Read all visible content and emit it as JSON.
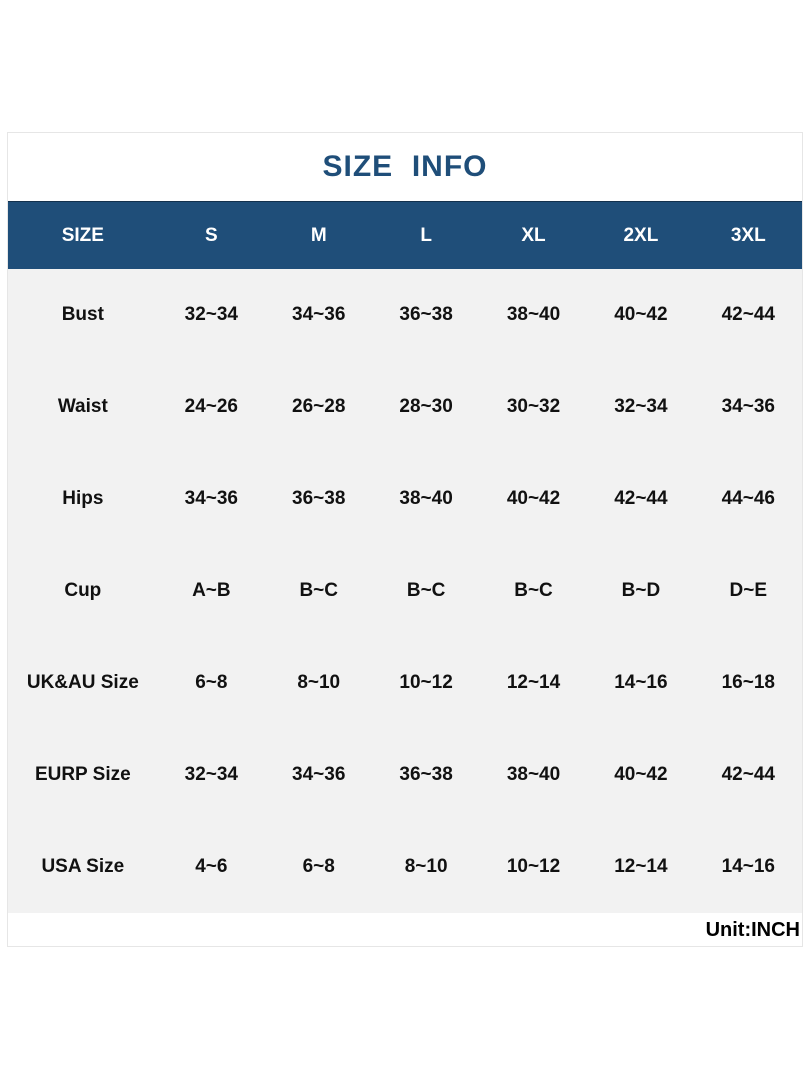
{
  "title": "SIZE  INFO",
  "header": [
    "SIZE",
    "S",
    "M",
    "L",
    "XL",
    "2XL",
    "3XL"
  ],
  "rows": [
    {
      "label": "Bust",
      "values": [
        "32~34",
        "34~36",
        "36~38",
        "38~40",
        "40~42",
        "42~44"
      ]
    },
    {
      "label": "Waist",
      "values": [
        "24~26",
        "26~28",
        "28~30",
        "30~32",
        "32~34",
        "34~36"
      ]
    },
    {
      "label": "Hips",
      "values": [
        "34~36",
        "36~38",
        "38~40",
        "40~42",
        "42~44",
        "44~46"
      ]
    },
    {
      "label": "Cup",
      "values": [
        "A~B",
        "B~C",
        "B~C",
        "B~C",
        "B~D",
        "D~E"
      ]
    },
    {
      "label": "UK&AU Size",
      "values": [
        "6~8",
        "8~10",
        "10~12",
        "12~14",
        "14~16",
        "16~18"
      ]
    },
    {
      "label": "EURP Size",
      "values": [
        "32~34",
        "34~36",
        "36~38",
        "38~40",
        "40~42",
        "42~44"
      ]
    },
    {
      "label": "USA Size",
      "values": [
        "4~6",
        "6~8",
        "8~10",
        "10~12",
        "12~14",
        "14~16"
      ]
    }
  ],
  "unit": "Unit:INCH",
  "colors": {
    "header_bg": "#1f4e79",
    "title": "#1f4e79",
    "body_bg": "#f2f2f2"
  }
}
